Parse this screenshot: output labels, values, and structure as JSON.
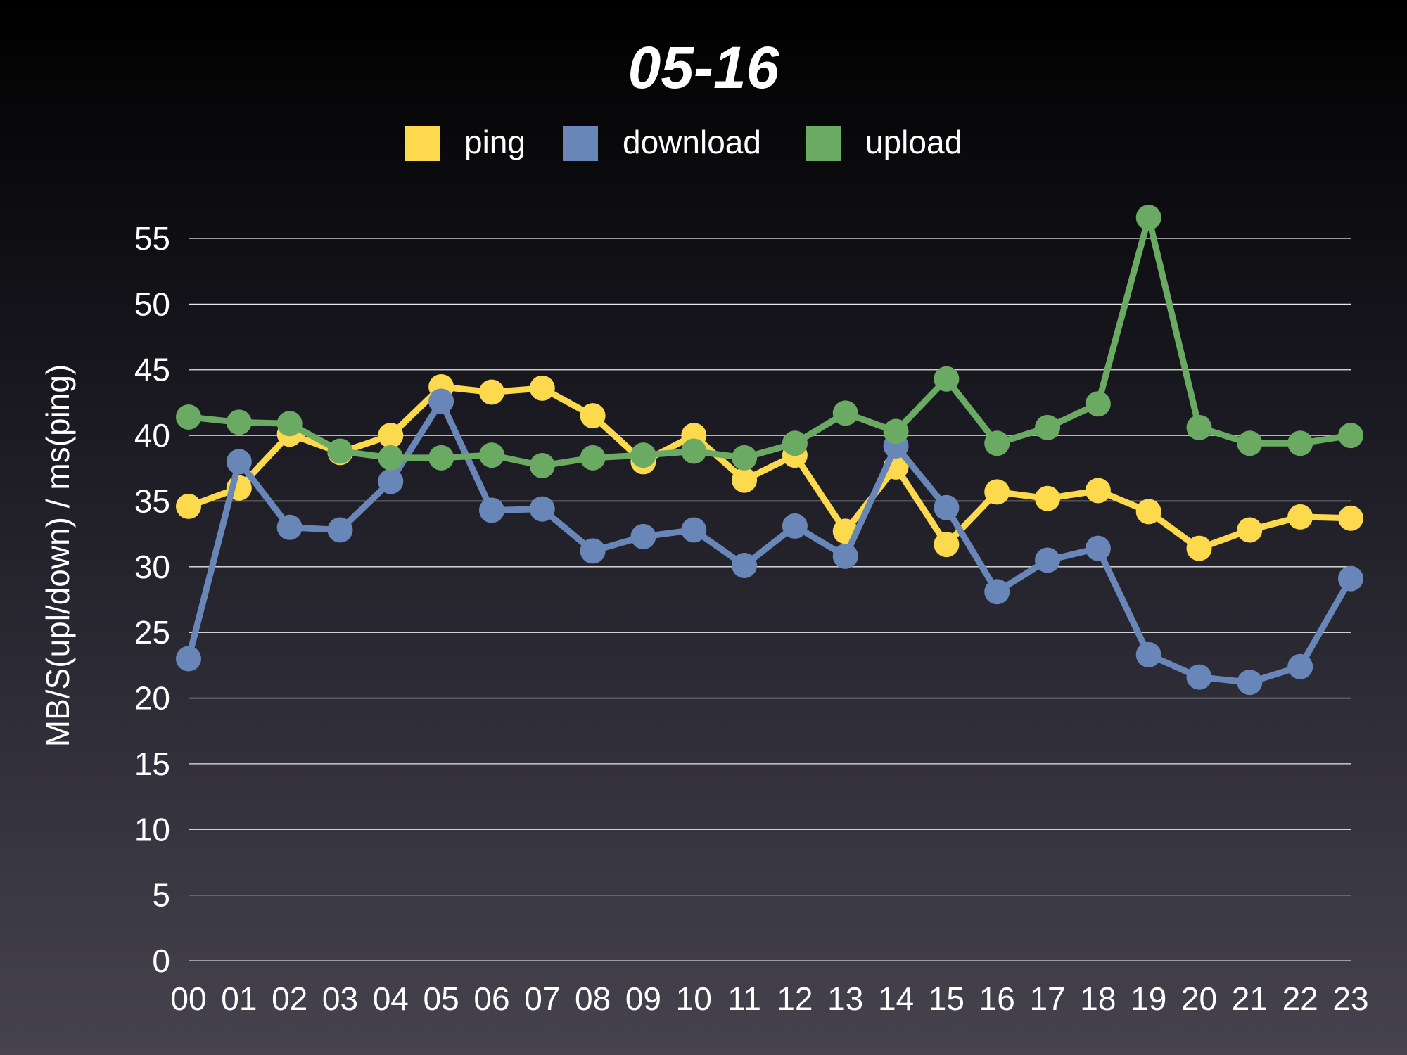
{
  "chart_data": {
    "type": "line",
    "title": "05-16",
    "xlabel": "",
    "ylabel": "MB/S(upl/down) / ms(ping)",
    "ylim": [
      0,
      55
    ],
    "yticks": [
      0,
      5,
      10,
      15,
      20,
      25,
      30,
      35,
      40,
      45,
      50,
      55
    ],
    "grid": true,
    "legend_position": "top",
    "categories": [
      "00",
      "01",
      "02",
      "03",
      "04",
      "05",
      "06",
      "07",
      "08",
      "09",
      "10",
      "11",
      "12",
      "13",
      "14",
      "15",
      "16",
      "17",
      "18",
      "19",
      "20",
      "21",
      "22",
      "23"
    ],
    "series": [
      {
        "name": "ping",
        "color": "#fdd94e",
        "values": [
          34.6,
          36.0,
          40.1,
          38.7,
          40.0,
          43.7,
          43.3,
          43.6,
          41.5,
          38.0,
          40.0,
          36.6,
          38.5,
          32.7,
          37.6,
          31.7,
          35.7,
          35.2,
          35.8,
          34.2,
          31.4,
          32.8,
          33.8,
          33.7
        ]
      },
      {
        "name": "download",
        "color": "#6887b8",
        "values": [
          23.0,
          38.0,
          33.0,
          32.8,
          36.5,
          42.6,
          34.3,
          34.4,
          31.2,
          32.3,
          32.8,
          30.1,
          33.1,
          30.8,
          39.2,
          34.5,
          28.1,
          30.5,
          31.4,
          23.3,
          21.6,
          21.2,
          22.4,
          29.1
        ]
      },
      {
        "name": "upload",
        "color": "#6aaa62",
        "values": [
          41.4,
          41.0,
          40.9,
          38.8,
          38.3,
          38.3,
          38.5,
          37.7,
          38.3,
          38.5,
          38.8,
          38.3,
          39.4,
          41.7,
          40.3,
          44.3,
          39.4,
          40.6,
          42.4,
          56.6,
          40.6,
          39.4,
          39.4,
          40.0
        ]
      }
    ]
  }
}
